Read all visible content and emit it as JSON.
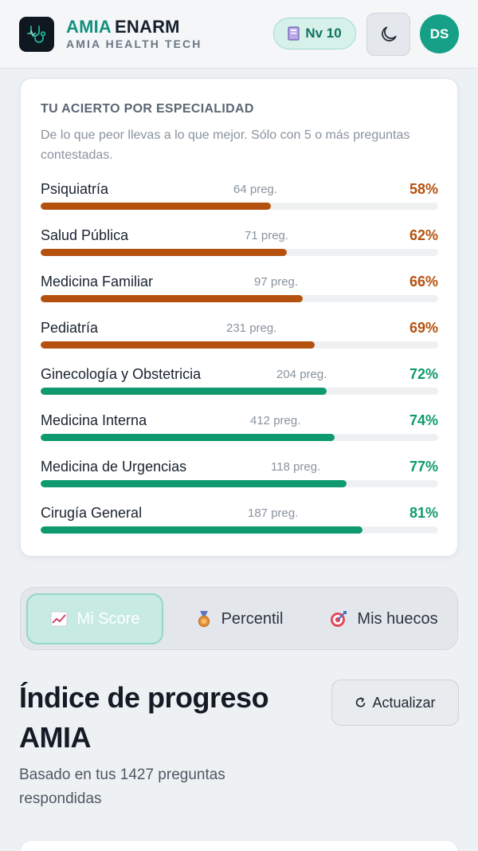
{
  "header": {
    "brand_primary": "AMIA",
    "brand_secondary": "ENARM",
    "brand_sub": "AMIA HEALTH TECH",
    "level_label": "Nv 10",
    "avatar_initials": "DS"
  },
  "specialty_card": {
    "title": "TU ACIERTO POR ESPECIALIDAD",
    "description": "De lo que peor llevas a lo que mejor. Sólo con 5 o más preguntas contestadas.",
    "rows": [
      {
        "name": "Psiquiatría",
        "count": "64 preg.",
        "pct_label": "58%",
        "pct": 58,
        "status": "weak"
      },
      {
        "name": "Salud Pública",
        "count": "71 preg.",
        "pct_label": "62%",
        "pct": 62,
        "status": "weak"
      },
      {
        "name": "Medicina Familiar",
        "count": "97 preg.",
        "pct_label": "66%",
        "pct": 66,
        "status": "weak"
      },
      {
        "name": "Pediatría",
        "count": "231 preg.",
        "pct_label": "69%",
        "pct": 69,
        "status": "weak"
      },
      {
        "name": "Ginecología y Obstetricia",
        "count": "204 preg.",
        "pct_label": "72%",
        "pct": 72,
        "status": "strong"
      },
      {
        "name": "Medicina Interna",
        "count": "412 preg.",
        "pct_label": "74%",
        "pct": 74,
        "status": "strong"
      },
      {
        "name": "Medicina de Urgencias",
        "count": "118 preg.",
        "pct_label": "77%",
        "pct": 77,
        "status": "strong"
      },
      {
        "name": "Cirugía General",
        "count": "187 preg.",
        "pct_label": "81%",
        "pct": 81,
        "status": "strong"
      }
    ]
  },
  "colors": {
    "weak": "#b5510f",
    "strong": "#0e9a6e",
    "accent": "#13917e"
  },
  "tabs": [
    {
      "label": "Mi Score",
      "icon": "chart-icon",
      "active": true
    },
    {
      "label": "Percentil",
      "icon": "medal-icon",
      "active": false
    },
    {
      "label": "Mis huecos",
      "icon": "target-icon",
      "active": false
    }
  ],
  "progress": {
    "title": "Índice de progreso AMIA",
    "refresh_label": "Actualizar",
    "subtitle": "Basado en tus 1427 preguntas respondidas"
  }
}
